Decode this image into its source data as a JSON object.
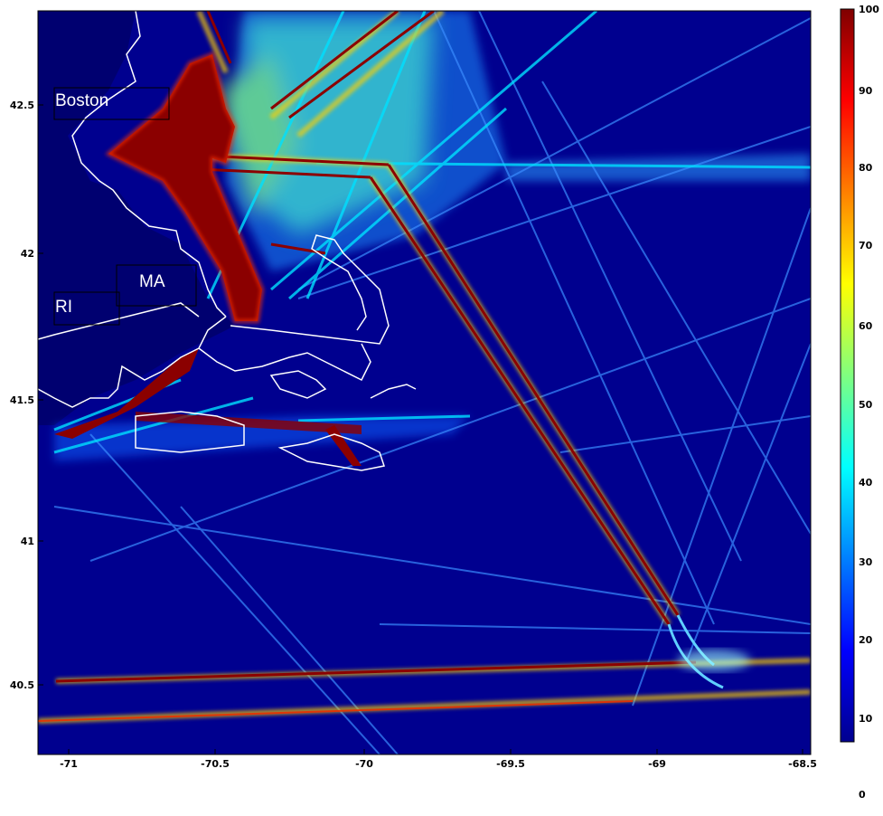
{
  "map": {
    "colors": {
      "ocean": "#00008f",
      "land": "#00007a",
      "coastline": "#ffffff",
      "high_density": "#7f0000"
    },
    "x_axis": {
      "ticks": [
        "-71",
        "-70.5",
        "-70",
        "-69.5",
        "-69",
        "-68.5"
      ],
      "range": [
        -71.1,
        -68.5
      ]
    },
    "y_axis": {
      "ticks": [
        "42.5",
        "42",
        "41.5",
        "41",
        "40.5"
      ],
      "range": [
        40.1,
        42.8
      ]
    },
    "labels": [
      {
        "text": "Boston"
      },
      {
        "text": "MA"
      },
      {
        "text": "RI"
      }
    ]
  },
  "colorbar": {
    "ticks": [
      "100",
      "90",
      "80",
      "70",
      "60",
      "50",
      "40",
      "30",
      "20",
      "10",
      "0"
    ],
    "range": [
      0,
      100
    ]
  }
}
